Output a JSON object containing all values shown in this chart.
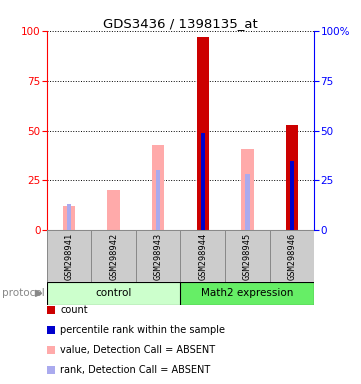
{
  "title": "GDS3436 / 1398135_at",
  "samples": [
    "GSM298941",
    "GSM298942",
    "GSM298943",
    "GSM298944",
    "GSM298945",
    "GSM298946"
  ],
  "group_names": [
    "control",
    "Math2 expression"
  ],
  "absent_value_bars": [
    12.0,
    20.0,
    43.0,
    0.0,
    41.0,
    0.0
  ],
  "absent_rank_bars": [
    13.0,
    0.0,
    30.0,
    0.0,
    28.0,
    0.0
  ],
  "present_value_bars": [
    0.0,
    0.0,
    0.0,
    97.0,
    0.0,
    53.0
  ],
  "present_rank_bars": [
    0.0,
    0.0,
    0.0,
    49.0,
    0.0,
    35.0
  ],
  "ylim": [
    0,
    100
  ],
  "color_red": "#cc0000",
  "color_blue": "#0000cc",
  "color_pink": "#ffaaaa",
  "color_lightblue": "#aaaaee",
  "color_gray": "#cccccc",
  "light_green": "#ccffcc",
  "mid_green": "#66ee66",
  "protocol_label": "protocol",
  "legend_items": [
    {
      "color": "#cc0000",
      "label": "count"
    },
    {
      "color": "#0000cc",
      "label": "percentile rank within the sample"
    },
    {
      "color": "#ffaaaa",
      "label": "value, Detection Call = ABSENT"
    },
    {
      "color": "#aaaaee",
      "label": "rank, Detection Call = ABSENT"
    }
  ]
}
